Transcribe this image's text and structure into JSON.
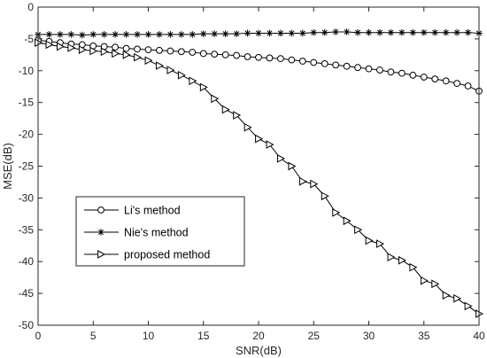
{
  "chart_data": {
    "type": "line",
    "title": "",
    "xlabel": "SNR(dB)",
    "ylabel": "MSE(dB)",
    "xlim": [
      0,
      40
    ],
    "ylim": [
      -50,
      0
    ],
    "xticks": [
      0,
      5,
      10,
      15,
      20,
      25,
      30,
      35,
      40
    ],
    "yticks": [
      0,
      -5,
      -10,
      -15,
      -20,
      -25,
      -30,
      -35,
      -40,
      -45,
      -50
    ],
    "grid": false,
    "legend_position": "lower-left",
    "x": [
      0,
      1,
      2,
      3,
      4,
      5,
      6,
      7,
      8,
      9,
      10,
      11,
      12,
      13,
      14,
      15,
      16,
      17,
      18,
      19,
      20,
      21,
      22,
      23,
      24,
      25,
      26,
      27,
      28,
      29,
      30,
      31,
      32,
      33,
      34,
      35,
      36,
      37,
      38,
      39,
      40
    ],
    "series": [
      {
        "name": "Li's method",
        "marker": "circle",
        "color": "#000000",
        "values": [
          -5.2,
          -5.4,
          -5.6,
          -5.8,
          -5.9,
          -6.1,
          -6.2,
          -6.3,
          -6.5,
          -6.6,
          -6.7,
          -6.8,
          -6.9,
          -7.0,
          -7.1,
          -7.3,
          -7.4,
          -7.5,
          -7.6,
          -7.8,
          -7.9,
          -8.0,
          -8.1,
          -8.3,
          -8.5,
          -8.7,
          -8.9,
          -9.1,
          -9.3,
          -9.5,
          -9.7,
          -9.9,
          -10.2,
          -10.4,
          -10.7,
          -11.0,
          -11.3,
          -11.6,
          -12.0,
          -12.4,
          -13.2
        ]
      },
      {
        "name": "Nie's method",
        "marker": "asterisk",
        "color": "#000000",
        "values": [
          -4.3,
          -4.3,
          -4.3,
          -4.3,
          -4.4,
          -4.3,
          -4.3,
          -4.3,
          -4.3,
          -4.3,
          -4.3,
          -4.3,
          -4.3,
          -4.3,
          -4.3,
          -4.2,
          -4.2,
          -4.2,
          -4.2,
          -4.1,
          -4.1,
          -4.1,
          -4.1,
          -4.1,
          -4.1,
          -4.0,
          -4.0,
          -3.9,
          -3.9,
          -4.0,
          -4.0,
          -4.0,
          -4.0,
          -4.0,
          -4.0,
          -4.0,
          -4.0,
          -4.0,
          -4.0,
          -4.0,
          -4.1
        ]
      },
      {
        "name": "proposed method",
        "marker": "triangle-right",
        "color": "#000000",
        "values": [
          -5.6,
          -5.9,
          -6.2,
          -6.4,
          -6.7,
          -6.9,
          -7.0,
          -7.3,
          -7.5,
          -7.9,
          -8.4,
          -9.2,
          -9.9,
          -10.7,
          -11.6,
          -12.6,
          -14.4,
          -16.1,
          -17.0,
          -18.9,
          -20.7,
          -21.6,
          -23.8,
          -25.0,
          -27.4,
          -27.8,
          -29.7,
          -32.3,
          -33.6,
          -35.0,
          -36.7,
          -37.2,
          -39.3,
          -39.8,
          -40.9,
          -43.0,
          -43.5,
          -45.3,
          -45.8,
          -47.0,
          -48.2
        ]
      }
    ]
  }
}
